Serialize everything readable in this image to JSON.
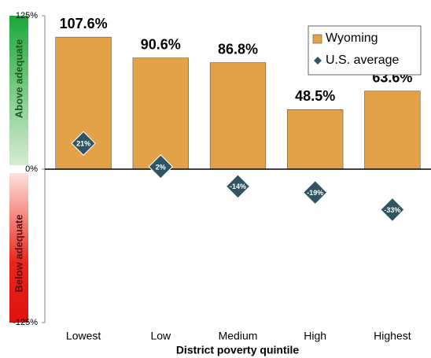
{
  "chart_data": {
    "type": "bar",
    "categories": [
      "Lowest",
      "Low",
      "Medium",
      "High",
      "Highest"
    ],
    "series": [
      {
        "name": "Wyoming",
        "color": "#e3a247",
        "values": [
          107.6,
          90.6,
          86.8,
          48.5,
          63.6
        ],
        "value_labels": [
          "107.6%",
          "90.6%",
          "86.8%",
          "48.5%",
          "63.6%"
        ]
      },
      {
        "name": "U.S. average",
        "color": "#2f5563",
        "marker": "diamond",
        "values": [
          21,
          2,
          -14,
          -19,
          -33
        ],
        "value_labels": [
          "21%",
          "2%",
          "-14%",
          "-19%",
          "-33%"
        ]
      }
    ],
    "ylim": [
      -125,
      125
    ],
    "yticks": [
      {
        "value": -125,
        "label": "-125%"
      },
      {
        "value": 0,
        "label": "0%"
      },
      {
        "value": 125,
        "label": "125%"
      }
    ],
    "x_label": "District poverty quintile",
    "annotations": [
      "Above adequate",
      "Below adequate"
    ],
    "legend": "upper right"
  }
}
